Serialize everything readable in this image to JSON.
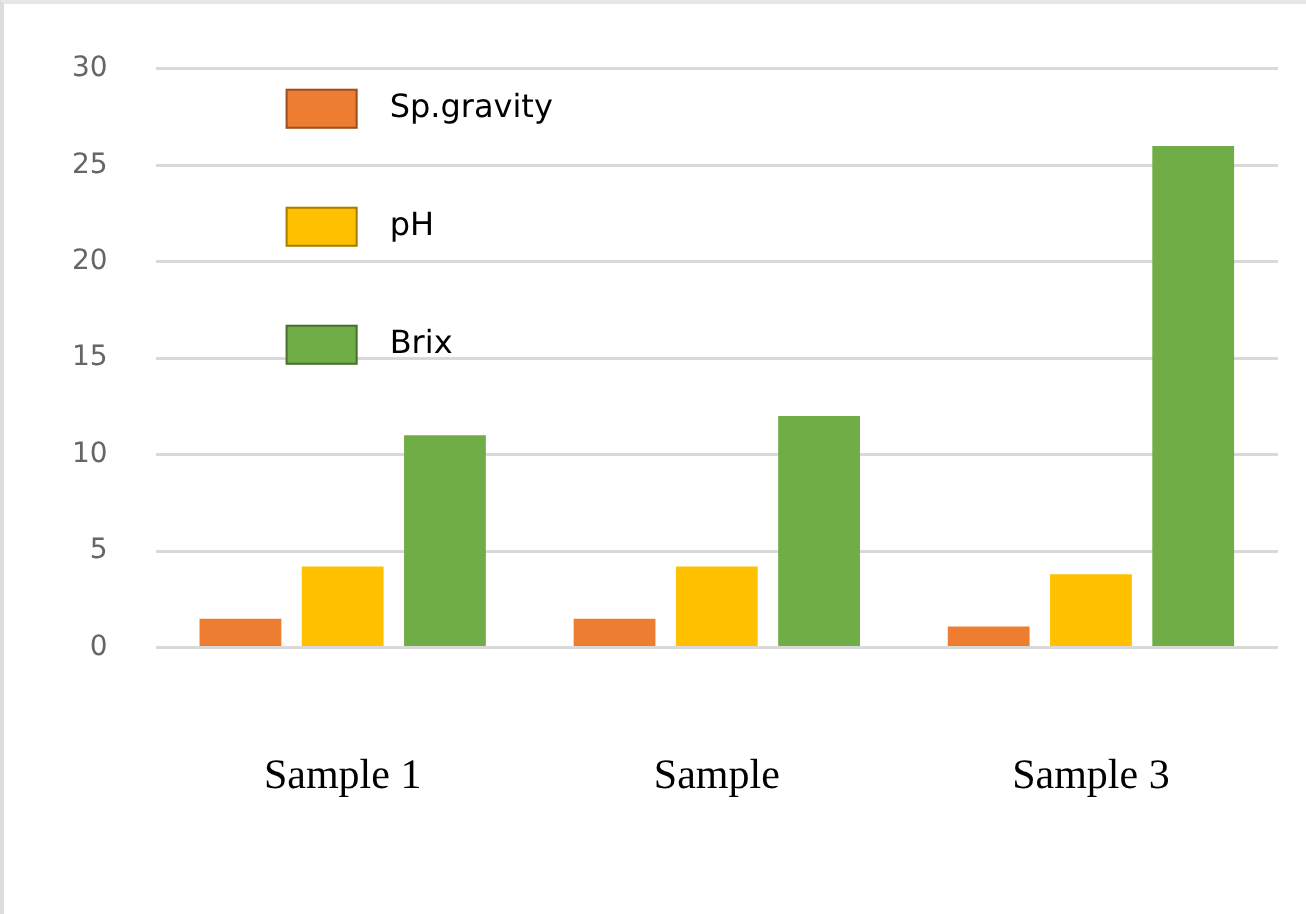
{
  "chart_data": {
    "type": "bar",
    "categories": [
      "Sample 1",
      "Sample",
      "Sample 3"
    ],
    "series": [
      {
        "name": "Sp.gravity",
        "color": "#ed7d31",
        "values": [
          1.5,
          1.5,
          1.1
        ]
      },
      {
        "name": "pH",
        "color": "#ffc000",
        "values": [
          4.2,
          4.2,
          3.8
        ]
      },
      {
        "name": "Brix",
        "color": "#70ad47",
        "values": [
          11,
          12,
          26
        ]
      }
    ],
    "ylim": [
      0,
      30
    ],
    "yticks": [
      0,
      5,
      10,
      15,
      20,
      25,
      30
    ],
    "grid": "y",
    "legend": "top left"
  }
}
